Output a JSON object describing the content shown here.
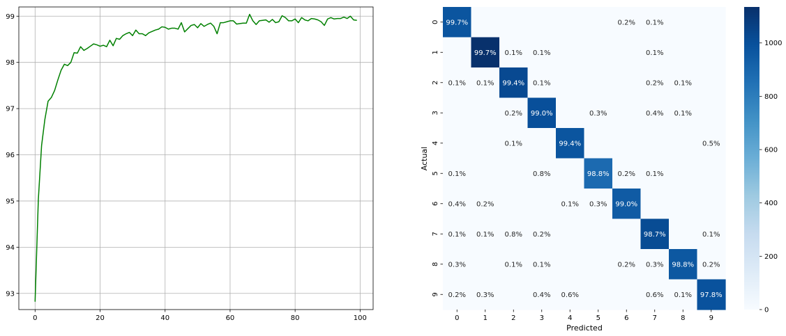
{
  "chart_data": [
    {
      "type": "line",
      "title": "",
      "xlabel": "",
      "ylabel": "",
      "grid": true,
      "xlim": [
        -5,
        104
      ],
      "ylim": [
        92.65,
        99.2
      ],
      "xticks": [
        0,
        20,
        40,
        60,
        80,
        100
      ],
      "yticks": [
        93,
        94,
        95,
        96,
        97,
        98,
        99
      ],
      "line_color": "#008000",
      "series": [
        {
          "x": [
            0,
            1,
            2,
            3,
            4,
            5,
            6,
            7,
            8,
            9,
            10,
            11,
            12,
            13,
            14,
            15,
            16,
            17,
            18,
            19,
            20,
            21,
            22,
            23,
            24,
            25,
            26,
            27,
            28,
            29,
            30,
            31,
            32,
            33,
            34,
            35,
            36,
            37,
            38,
            39,
            40,
            41,
            42,
            43,
            44,
            45,
            46,
            47,
            48,
            49,
            50,
            51,
            52,
            53,
            54,
            55,
            56,
            57,
            58,
            59,
            60,
            61,
            62,
            63,
            64,
            65,
            66,
            67,
            68,
            69,
            70,
            71,
            72,
            73,
            74,
            75,
            76,
            77,
            78,
            79,
            80,
            81,
            82,
            83,
            84,
            85,
            86,
            87,
            88,
            89,
            90,
            91,
            92,
            93,
            94,
            95,
            96,
            97,
            98,
            99
          ],
          "values": [
            92.82,
            95.03,
            96.2,
            96.76,
            97.16,
            97.24,
            97.39,
            97.62,
            97.83,
            97.96,
            97.93,
            98.0,
            98.21,
            98.2,
            98.34,
            98.26,
            98.3,
            98.35,
            98.4,
            98.38,
            98.35,
            98.37,
            98.34,
            98.48,
            98.36,
            98.52,
            98.5,
            98.58,
            98.62,
            98.65,
            98.58,
            98.7,
            98.62,
            98.62,
            98.58,
            98.64,
            98.67,
            98.7,
            98.72,
            98.77,
            98.76,
            98.72,
            98.74,
            98.74,
            98.72,
            98.86,
            98.66,
            98.73,
            98.8,
            98.82,
            98.75,
            98.84,
            98.78,
            98.82,
            98.85,
            98.78,
            98.62,
            98.86,
            98.86,
            98.88,
            98.9,
            98.9,
            98.83,
            98.84,
            98.85,
            98.85,
            99.04,
            98.9,
            98.82,
            98.9,
            98.91,
            98.92,
            98.87,
            98.93,
            98.86,
            98.88,
            99.01,
            98.97,
            98.9,
            98.9,
            98.94,
            98.86,
            98.97,
            98.92,
            98.9,
            98.95,
            98.94,
            98.92,
            98.88,
            98.8,
            98.94,
            98.97,
            98.94,
            98.95,
            98.95,
            98.98,
            98.95,
            99.0,
            98.92,
            98.91
          ]
        }
      ]
    },
    {
      "type": "heatmap",
      "title": "",
      "xlabel": "Predicted",
      "ylabel": "Actual",
      "categories": [
        "0",
        "1",
        "2",
        "3",
        "4",
        "5",
        "6",
        "7",
        "8",
        "9"
      ],
      "colormap": "Blues",
      "colorbar_range": [
        0,
        1135
      ],
      "colorbar_ticks": [
        0,
        200,
        400,
        600,
        800,
        1000
      ],
      "diagonal_counts": [
        977,
        1132,
        1026,
        1000,
        976,
        881,
        948,
        1015,
        962,
        987
      ],
      "cells": [
        [
          "99.7%",
          "",
          "",
          "",
          "",
          "",
          "0.2%",
          "0.1%",
          "",
          ""
        ],
        [
          "",
          "99.7%",
          "0.1%",
          "0.1%",
          "",
          "",
          "",
          "0.1%",
          "",
          ""
        ],
        [
          "0.1%",
          "0.1%",
          "99.4%",
          "0.1%",
          "",
          "",
          "",
          "0.2%",
          "0.1%",
          ""
        ],
        [
          "",
          "",
          "0.2%",
          "99.0%",
          "",
          "0.3%",
          "",
          "0.4%",
          "0.1%",
          ""
        ],
        [
          "",
          "",
          "0.1%",
          "",
          "99.4%",
          "",
          "",
          "",
          "",
          "0.5%"
        ],
        [
          "0.1%",
          "",
          "",
          "0.8%",
          "",
          "98.8%",
          "0.2%",
          "0.1%",
          "",
          ""
        ],
        [
          "0.4%",
          "0.2%",
          "",
          "",
          "0.1%",
          "0.3%",
          "99.0%",
          "",
          "",
          ""
        ],
        [
          "0.1%",
          "0.1%",
          "0.8%",
          "0.2%",
          "",
          "",
          "",
          "98.7%",
          "",
          "0.1%"
        ],
        [
          "0.3%",
          "",
          "0.1%",
          "0.1%",
          "",
          "",
          "0.2%",
          "0.3%",
          "98.8%",
          "0.2%"
        ],
        [
          "0.2%",
          "0.3%",
          "",
          "0.4%",
          "0.6%",
          "",
          "",
          "0.6%",
          "0.1%",
          "97.8%"
        ]
      ]
    }
  ]
}
